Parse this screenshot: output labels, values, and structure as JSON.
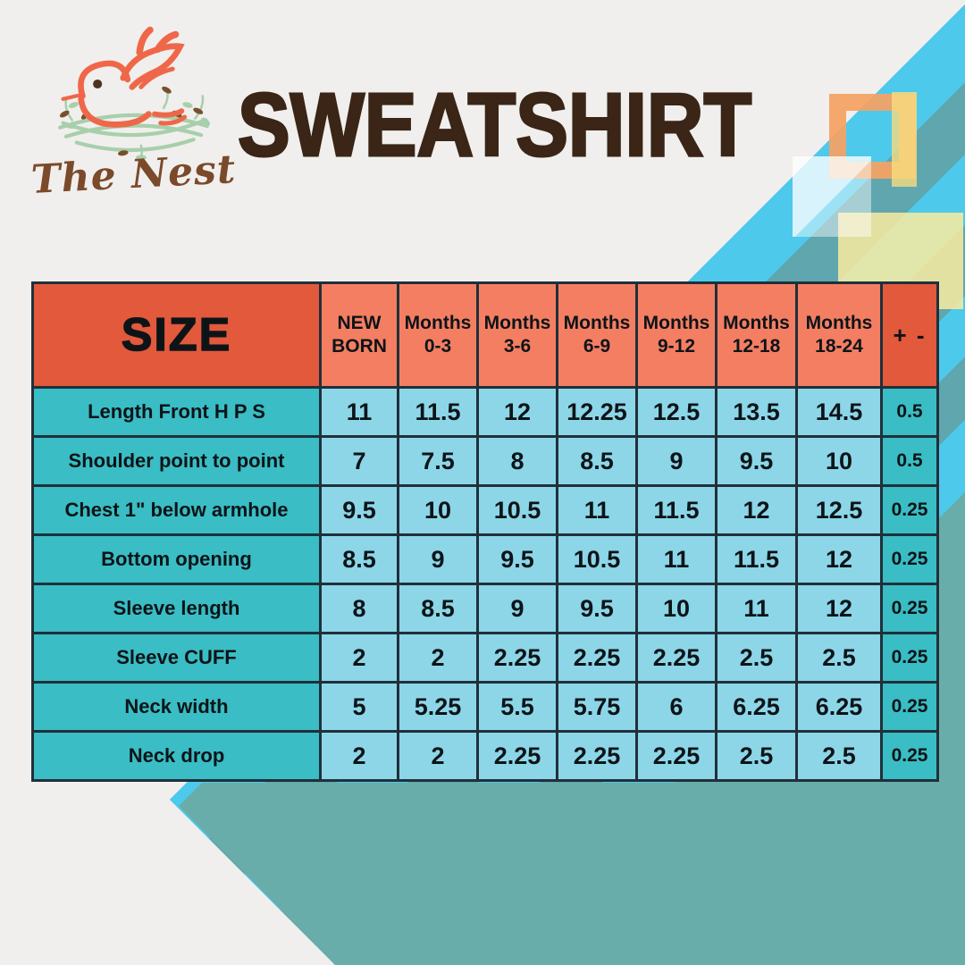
{
  "logo": {
    "brand_script": "The Nest"
  },
  "title": "SWEATSHIRT",
  "chart_data": {
    "type": "table",
    "corner_header": "SIZE",
    "tolerance_header": "+ -",
    "age_columns": [
      [
        "NEW",
        "BORN"
      ],
      [
        "Months",
        "0-3"
      ],
      [
        "Months",
        "3-6"
      ],
      [
        "Months",
        "6-9"
      ],
      [
        "Months",
        "9-12"
      ],
      [
        "Months",
        "12-18"
      ],
      [
        "Months",
        "18-24"
      ]
    ],
    "rows": [
      {
        "label": "Length Front H P S",
        "values": [
          "11",
          "11.5",
          "12",
          "12.25",
          "12.5",
          "13.5",
          "14.5"
        ],
        "tolerance": "0.5"
      },
      {
        "label": "Shoulder point to point",
        "values": [
          "7",
          "7.5",
          "8",
          "8.5",
          "9",
          "9.5",
          "10"
        ],
        "tolerance": "0.5"
      },
      {
        "label": "Chest 1\" below armhole",
        "values": [
          "9.5",
          "10",
          "10.5",
          "11",
          "11.5",
          "12",
          "12.5"
        ],
        "tolerance": "0.25"
      },
      {
        "label": "Bottom opening",
        "values": [
          "8.5",
          "9",
          "9.5",
          "10.5",
          "11",
          "11.5",
          "12"
        ],
        "tolerance": "0.25"
      },
      {
        "label": "Sleeve length",
        "values": [
          "8",
          "8.5",
          "9",
          "9.5",
          "10",
          "11",
          "12"
        ],
        "tolerance": "0.25"
      },
      {
        "label": "Sleeve CUFF",
        "values": [
          "2",
          "2",
          "2.25",
          "2.25",
          "2.25",
          "2.5",
          "2.5"
        ],
        "tolerance": "0.25"
      },
      {
        "label": "Neck width",
        "values": [
          "5",
          "5.25",
          "5.5",
          "5.75",
          "6",
          "6.25",
          "6.25"
        ],
        "tolerance": "0.25"
      },
      {
        "label": "Neck drop",
        "values": [
          "2",
          "2",
          "2.25",
          "2.25",
          "2.25",
          "2.5",
          "2.5"
        ],
        "tolerance": "0.25"
      }
    ]
  },
  "colors": {
    "background": "#f0efed",
    "header_accent_orange": "#e2593c",
    "header_salmon": "#f47e62",
    "label_teal": "#3abdc4",
    "cell_blue": "#8cd6e8",
    "stripe_cyan": "#4dc9ec",
    "stripe_teal": "#5fa6ae",
    "wedge_teal": "#69adab",
    "table_border": "#20303a",
    "title_brown": "#3a2516",
    "logo_coral": "#ef6749",
    "nest_green": "#a8cfab",
    "script_brown": "#7b4a2b"
  }
}
